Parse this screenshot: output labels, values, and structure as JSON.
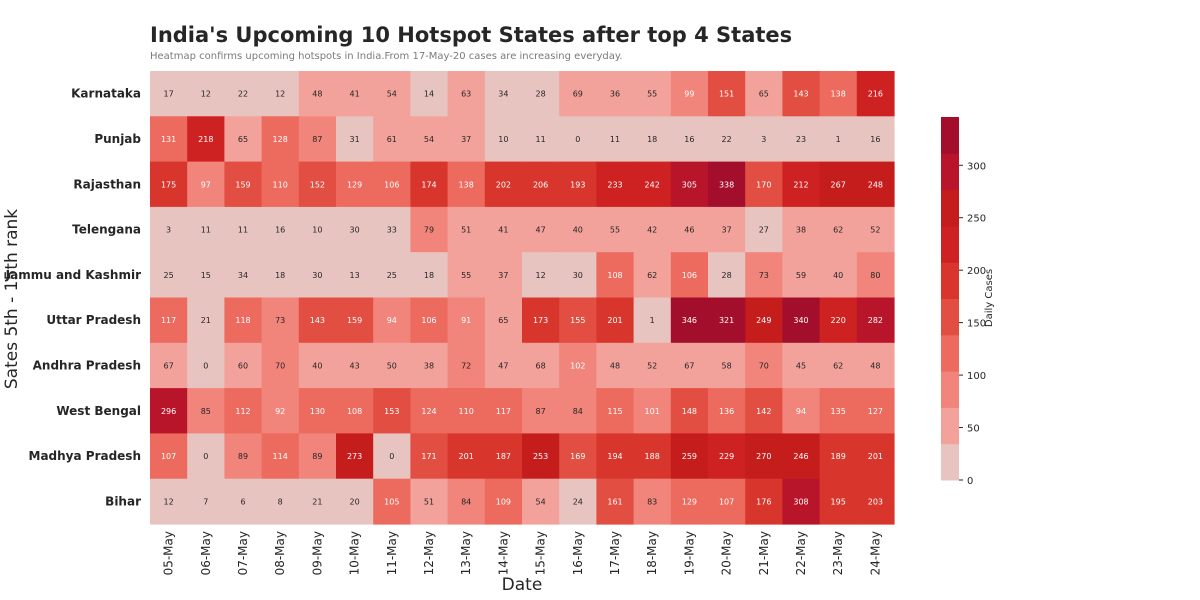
{
  "chart_data": {
    "type": "heatmap",
    "title": "India's Upcoming 10 Hotspot States after top 4 States",
    "subtitle": "Heatmap confirms upcoming hotspots in India.From 17-May-20 cases are increasing everyday.",
    "xlabel": "Date",
    "ylabel": "Sates 5th - 15th rank",
    "colorbar_label": "Daily Cases",
    "x": [
      "05-May",
      "06-May",
      "07-May",
      "08-May",
      "09-May",
      "10-May",
      "11-May",
      "12-May",
      "13-May",
      "14-May",
      "15-May",
      "16-May",
      "17-May",
      "18-May",
      "19-May",
      "20-May",
      "21-May",
      "22-May",
      "23-May",
      "24-May"
    ],
    "y": [
      "Karnataka",
      "Punjab",
      "Rajasthan",
      "Telengana",
      "Jammu and Kashmir",
      "Uttar Pradesh",
      "Andhra Pradesh",
      "West Bengal",
      "Madhya Pradesh",
      "Bihar"
    ],
    "values": [
      [
        17,
        12,
        22,
        12,
        48,
        41,
        54,
        14,
        63,
        34,
        28,
        69,
        36,
        55,
        99,
        151,
        65,
        143,
        138,
        216
      ],
      [
        131,
        218,
        65,
        128,
        87,
        31,
        61,
        54,
        37,
        10,
        11,
        0,
        11,
        18,
        16,
        22,
        3,
        23,
        1,
        16
      ],
      [
        175,
        97,
        159,
        110,
        152,
        129,
        106,
        174,
        138,
        202,
        206,
        193,
        233,
        242,
        305,
        338,
        170,
        212,
        267,
        248
      ],
      [
        3,
        11,
        11,
        16,
        10,
        30,
        33,
        79,
        51,
        41,
        47,
        40,
        55,
        42,
        46,
        37,
        27,
        38,
        62,
        52
      ],
      [
        25,
        15,
        34,
        18,
        30,
        13,
        25,
        18,
        55,
        37,
        12,
        30,
        108,
        62,
        106,
        28,
        73,
        59,
        40,
        80
      ],
      [
        117,
        21,
        118,
        73,
        143,
        159,
        94,
        106,
        91,
        65,
        173,
        155,
        201,
        1,
        346,
        321,
        249,
        340,
        220,
        282
      ],
      [
        67,
        0,
        60,
        70,
        40,
        43,
        50,
        38,
        72,
        47,
        68,
        102,
        48,
        52,
        67,
        58,
        70,
        45,
        62,
        48
      ],
      [
        296,
        85,
        112,
        92,
        130,
        108,
        153,
        124,
        110,
        117,
        87,
        84,
        115,
        101,
        148,
        136,
        142,
        94,
        135,
        127
      ],
      [
        107,
        0,
        89,
        114,
        89,
        273,
        0,
        171,
        201,
        187,
        253,
        169,
        194,
        188,
        259,
        229,
        270,
        246,
        189,
        201
      ],
      [
        12,
        7,
        6,
        8,
        21,
        20,
        105,
        51,
        84,
        109,
        54,
        24,
        161,
        83,
        129,
        107,
        176,
        308,
        195,
        203
      ]
    ],
    "colorbar_ticks": [
      0,
      50,
      100,
      150,
      200,
      250,
      300
    ],
    "colorbar_range": [
      0,
      346
    ],
    "colors": [
      "#e8c4c0",
      "#f2a29a",
      "#f1857b",
      "#ec6a5e",
      "#e24e42",
      "#d8362c",
      "#ce2121",
      "#c51c1c",
      "#b8152a",
      "#a30e2c"
    ]
  }
}
